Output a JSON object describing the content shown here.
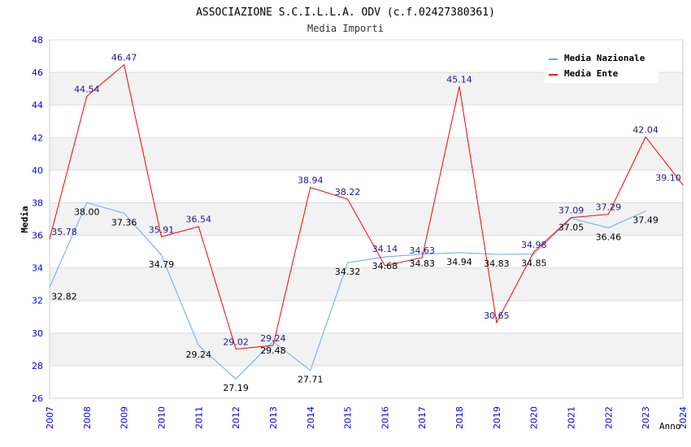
{
  "chart_data": {
    "type": "line",
    "title": "ASSOCIAZIONE S.C.I.L.L.A. ODV (c.f.02427380361)",
    "subtitle": "Media Importi",
    "xlabel": "Anno",
    "ylabel": "Media",
    "x": [
      2007,
      2008,
      2009,
      2010,
      2011,
      2012,
      2013,
      2014,
      2015,
      2016,
      2017,
      2018,
      2019,
      2020,
      2021,
      2022,
      2023,
      2024
    ],
    "ylim": [
      26,
      48
    ],
    "yticks": [
      26,
      28,
      30,
      32,
      34,
      36,
      38,
      40,
      42,
      44,
      46,
      48
    ],
    "grid": true,
    "legend_position": "top-right",
    "series": [
      {
        "name": "Media Nazionale",
        "color": "#6aa8f0",
        "label_color": "#000000",
        "values": [
          32.82,
          38.0,
          37.36,
          34.79,
          29.24,
          27.19,
          29.48,
          27.71,
          34.32,
          34.68,
          34.83,
          34.94,
          34.83,
          34.85,
          37.05,
          36.46,
          37.49,
          null
        ]
      },
      {
        "name": "Media Ente",
        "color": "#ff0000",
        "label_color": "#1a1a8c",
        "values": [
          35.78,
          44.54,
          46.47,
          35.91,
          36.54,
          29.02,
          29.24,
          38.94,
          38.22,
          34.14,
          34.63,
          45.14,
          30.65,
          34.98,
          37.09,
          37.29,
          42.04,
          39.1
        ]
      }
    ]
  }
}
